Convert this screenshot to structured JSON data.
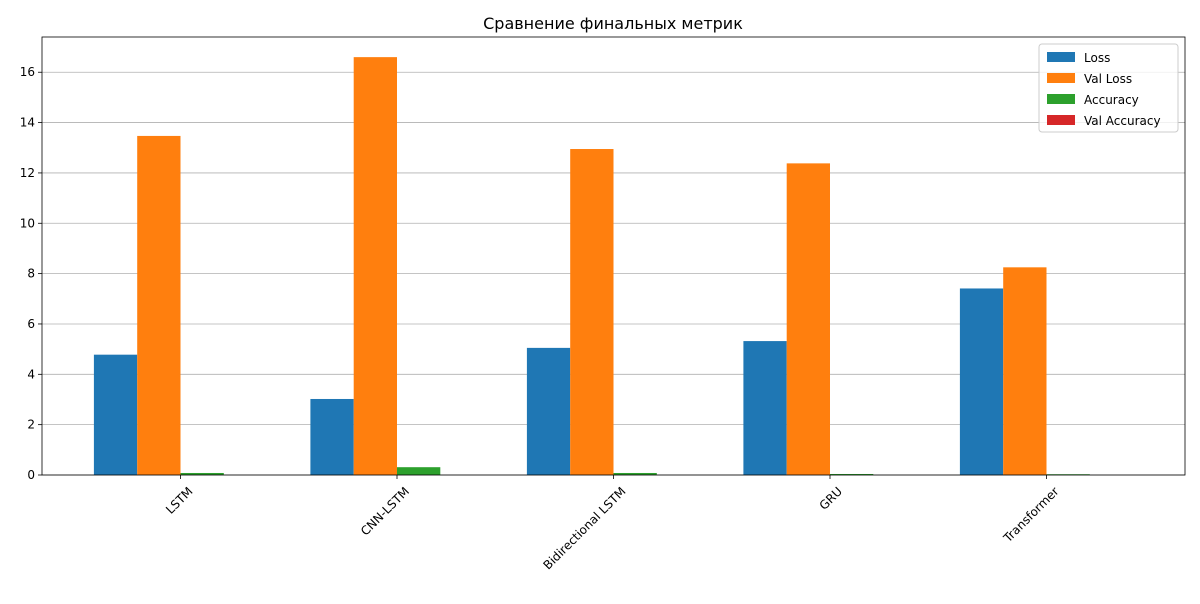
{
  "chart_data": {
    "type": "bar",
    "title": "Сравнение финальных метрик",
    "xlabel": "",
    "ylabel": "",
    "categories": [
      "LSTM",
      "CNN-LSTM",
      "Bidirectional LSTM",
      "GRU",
      "Transformer"
    ],
    "series": [
      {
        "name": "Loss",
        "color": "#1f77b4",
        "values": [
          4.78,
          3.02,
          5.05,
          5.32,
          7.41
        ]
      },
      {
        "name": "Val Loss",
        "color": "#ff7f0e",
        "values": [
          13.47,
          16.6,
          12.95,
          12.38,
          8.25
        ]
      },
      {
        "name": "Accuracy",
        "color": "#2ca02c",
        "values": [
          0.08,
          0.31,
          0.08,
          0.04,
          0.03
        ]
      },
      {
        "name": "Val Accuracy",
        "color": "#d62728",
        "values": [
          0.0,
          0.0,
          0.0,
          0.0,
          0.0
        ]
      }
    ],
    "ylim": [
      0,
      17.4
    ],
    "yticks": [
      0,
      2,
      4,
      6,
      8,
      10,
      12,
      14,
      16
    ],
    "grid": "y",
    "legend": "top-right",
    "xtick_rotation": 45
  }
}
